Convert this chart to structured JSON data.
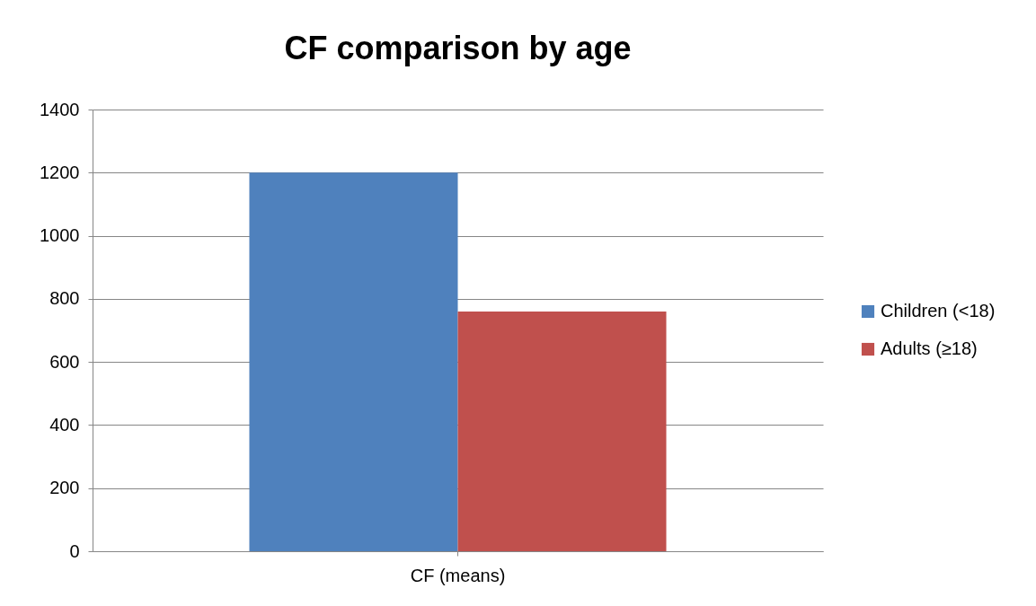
{
  "chart_data": {
    "type": "bar",
    "title": "CF comparison by age",
    "categories": [
      "CF (means)"
    ],
    "series": [
      {
        "name": "Children (<18)",
        "color": "#4f81bd",
        "values": [
          1200
        ]
      },
      {
        "name": "Adults (≥18)",
        "color": "#c0504d",
        "values": [
          760
        ]
      }
    ],
    "ylim": [
      0,
      1400
    ],
    "yticks": [
      0,
      200,
      400,
      600,
      800,
      1000,
      1200,
      1400
    ],
    "grid": "y",
    "legend": "right"
  }
}
